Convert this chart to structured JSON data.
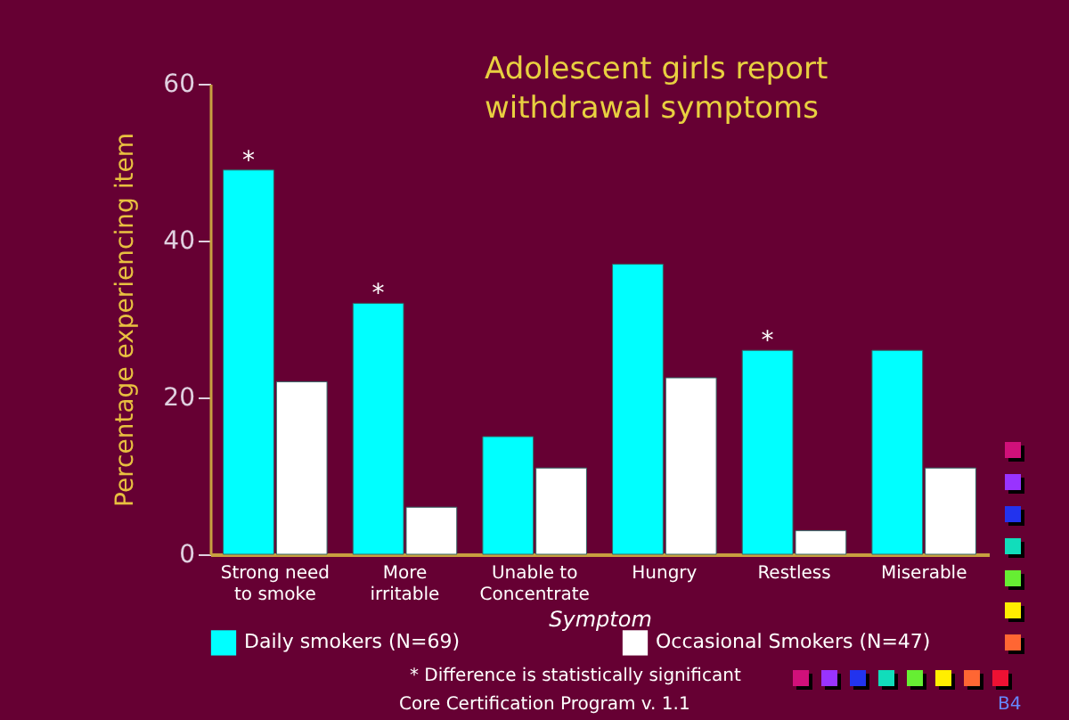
{
  "chart_data": {
    "type": "bar",
    "title": "Adolescent girls report withdrawal symptoms",
    "xlabel": "Symptom",
    "ylabel": "Percentage experiencing item",
    "categories": [
      "Strong need to smoke",
      "More irritable",
      "Unable to Concentrate",
      "Hungry",
      "Restless",
      "Miserable"
    ],
    "series": [
      {
        "name": "Daily smokers (N=69)",
        "color": "#00ffff",
        "values": [
          49,
          32,
          15,
          37,
          26,
          26
        ]
      },
      {
        "name": "Occasional Smokers (N=47)",
        "color": "#ffffff",
        "values": [
          22,
          6,
          11,
          22.5,
          3,
          11
        ]
      }
    ],
    "ylim": [
      0,
      60
    ],
    "yticks": [
      0,
      20,
      40,
      60
    ],
    "grid": false,
    "legend": "bottom",
    "annotations": [
      {
        "text": "*",
        "x": "Strong need to smoke",
        "y": 49
      },
      {
        "text": "*",
        "x": "More irritable",
        "y": 32
      },
      {
        "text": "*",
        "x": "Restless",
        "y": 26
      },
      "* Difference is statistically significant",
      "Core Certification Program v. 1.1",
      "B4"
    ]
  }
}
